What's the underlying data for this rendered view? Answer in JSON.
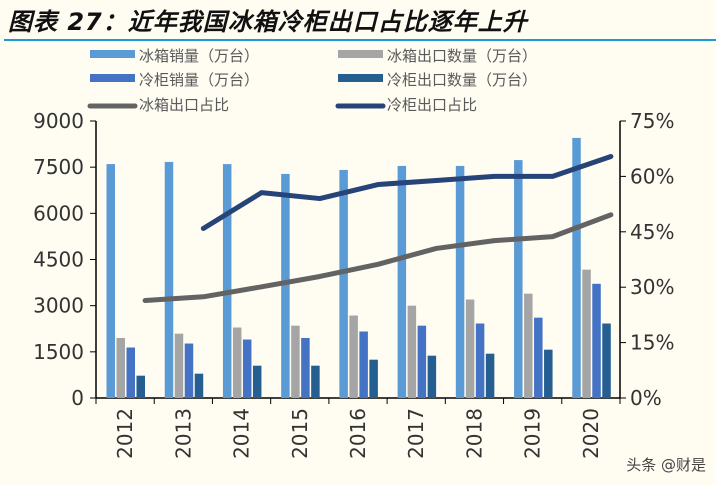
{
  "chart_data": {
    "type": "bar",
    "title": "图表 27：近年我国冰箱冷柜出口占比逐年上升",
    "categories": [
      "2012",
      "2013",
      "2014",
      "2015",
      "2016",
      "2017",
      "2018",
      "2019",
      "2020"
    ],
    "ylim_left": [
      0,
      9000
    ],
    "yticks_left": [
      "0",
      "1500",
      "3000",
      "4500",
      "6000",
      "7500",
      "9000"
    ],
    "ylim_right": [
      0,
      75
    ],
    "yticks_right": [
      "0%",
      "15%",
      "30%",
      "45%",
      "60%",
      "75%"
    ],
    "legend_placement": "top",
    "grid": false,
    "series": [
      {
        "name": "冰箱销量（万台）",
        "kind": "bar",
        "axis": "left",
        "color": "#5B9BD5",
        "values": [
          7600,
          7670,
          7600,
          7280,
          7410,
          7540,
          7540,
          7730,
          8450
        ]
      },
      {
        "name": "冰箱出口数量（万台）",
        "kind": "bar",
        "axis": "left",
        "color": "#A5A5A5",
        "values": [
          1950,
          2090,
          2290,
          2350,
          2680,
          3000,
          3200,
          3390,
          4170
        ]
      },
      {
        "name": "冷柜销量（万台）",
        "kind": "bar",
        "axis": "left",
        "color": "#4472C4",
        "values": [
          1640,
          1770,
          1900,
          1950,
          2160,
          2350,
          2420,
          2610,
          3710
        ]
      },
      {
        "name": "冷柜出口数量（万台）",
        "kind": "bar",
        "axis": "left",
        "color": "#255E91",
        "values": [
          725,
          790,
          1050,
          1050,
          1245,
          1375,
          1440,
          1570,
          2420
        ]
      },
      {
        "name": "冰箱出口占比",
        "kind": "line",
        "axis": "right",
        "color": "#636363",
        "values": [
          26.4,
          27.4,
          30.1,
          32.9,
          36.2,
          40.5,
          42.6,
          43.7,
          49.6
        ]
      },
      {
        "name": "冷柜出口占比",
        "kind": "line",
        "axis": "right",
        "color": "#264478",
        "values": [
          null,
          45.9,
          55.6,
          54.0,
          57.8,
          58.9,
          60.0,
          60.0,
          65.4
        ]
      }
    ]
  },
  "watermark": "头条 @财是"
}
